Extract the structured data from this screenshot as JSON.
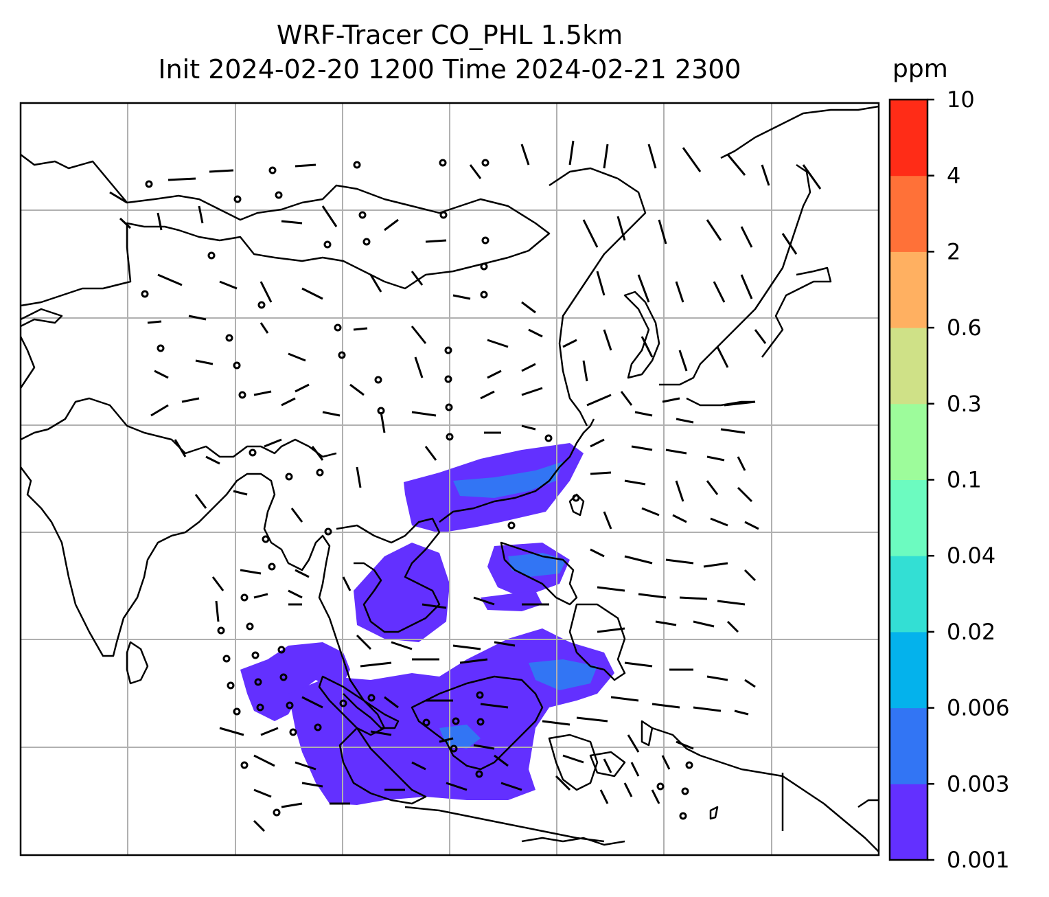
{
  "title": {
    "line1": "WRF-Tracer CO_PHL 1.5km",
    "line2": "Init 2024-02-20 1200 Time 2024-02-21 2300"
  },
  "colorbar": {
    "unit": "ppm",
    "levels": [
      "0.001",
      "0.003",
      "0.006",
      "0.02",
      "0.04",
      "0.1",
      "0.3",
      "0.6",
      "2",
      "4",
      "10"
    ],
    "colors": [
      "#6330ff",
      "#3275f4",
      "#04b2ec",
      "#33dfd4",
      "#6cfbc0",
      "#9dfc9b",
      "#cfe187",
      "#ffb061",
      "#ff7138",
      "#ff2c17"
    ]
  },
  "colors": {
    "coastline": "#000000",
    "gridline": "#b0b0b0",
    "tracer_low": "#6330ff",
    "tracer_mid": "#3275f4"
  }
}
